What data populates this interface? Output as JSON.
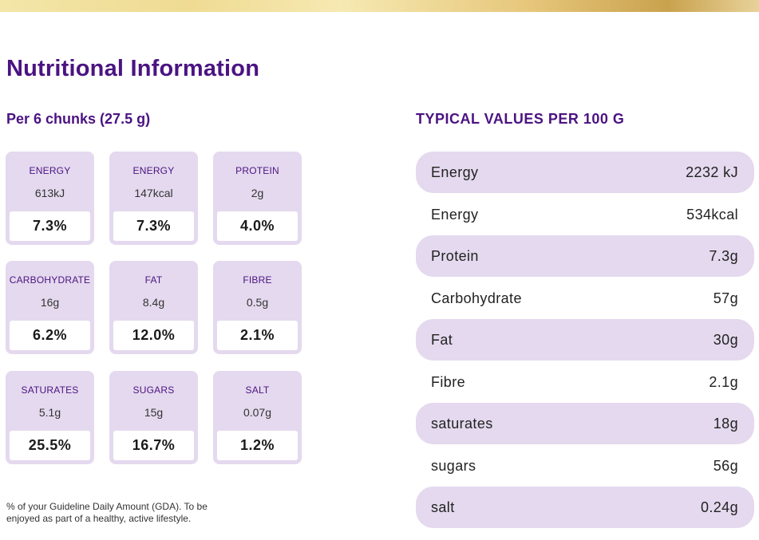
{
  "page": {
    "title": "Nutritional Information",
    "portion_heading": "Per 6 chunks (27.5 g)",
    "typical_heading": "TYPICAL VALUES PER 100 G",
    "footnote_line1": "% of your Guideline Daily Amount (GDA). To be",
    "footnote_line2": "enjoyed as part of a healthy, active lifestyle."
  },
  "colors": {
    "accent": "#4b1382",
    "tile_bg": "#e4d9ee",
    "gold_bar": "#e6c67a"
  },
  "gda_tiles": [
    {
      "name": "ENERGY",
      "amount": "613kJ",
      "percent": "7.3%"
    },
    {
      "name": "ENERGY",
      "amount": "147kcal",
      "percent": "7.3%"
    },
    {
      "name": "PROTEIN",
      "amount": "2g",
      "percent": "4.0%"
    },
    {
      "name": "CARBOHYDRATE",
      "amount": "16g",
      "percent": "6.2%"
    },
    {
      "name": "FAT",
      "amount": "8.4g",
      "percent": "12.0%"
    },
    {
      "name": "FIBRE",
      "amount": "0.5g",
      "percent": "2.1%"
    },
    {
      "name": "SATURATES",
      "amount": "5.1g",
      "percent": "25.5%"
    },
    {
      "name": "SUGARS",
      "amount": "15g",
      "percent": "16.7%"
    },
    {
      "name": "SALT",
      "amount": "0.07g",
      "percent": "1.2%"
    }
  ],
  "typical_values": [
    {
      "name": "Energy",
      "value": "2232 kJ"
    },
    {
      "name": "Energy",
      "value": "534kcal"
    },
    {
      "name": "Protein",
      "value": "7.3g"
    },
    {
      "name": "Carbohydrate",
      "value": "57g"
    },
    {
      "name": "Fat",
      "value": "30g"
    },
    {
      "name": "Fibre",
      "value": "2.1g"
    },
    {
      "name": "saturates",
      "value": "18g"
    },
    {
      "name": "sugars",
      "value": "56g"
    },
    {
      "name": "salt",
      "value": "0.24g"
    }
  ]
}
